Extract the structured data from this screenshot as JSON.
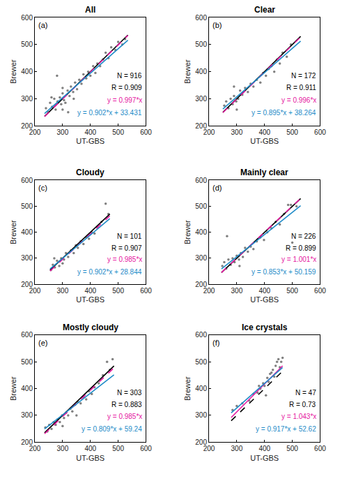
{
  "chart_data": [
    {
      "type": "scatter",
      "title": "All",
      "label": "(a)",
      "x_label": "UT-GBS",
      "y_label": "Brewer",
      "xlim": [
        200,
        600
      ],
      "ylim": [
        200,
        600
      ],
      "xticks": [
        200,
        300,
        400,
        500,
        600
      ],
      "yticks": [
        200,
        300,
        400,
        500,
        600
      ],
      "series": [
        {
          "type": "scatter",
          "marker": "circle",
          "color": "#808080",
          "x": [
            240,
            248,
            255,
            262,
            270,
            275,
            282,
            290,
            295,
            300,
            305,
            310,
            318,
            325,
            330,
            338,
            345,
            352,
            360,
            368,
            375,
            385,
            392,
            400,
            410,
            418,
            425,
            435,
            445,
            455,
            465,
            475,
            490,
            500,
            515,
            525,
            280,
            300,
            320,
            340,
            300,
            260
          ],
          "values": [
            265,
            250,
            285,
            270,
            300,
            260,
            290,
            305,
            280,
            320,
            295,
            285,
            330,
            310,
            345,
            325,
            360,
            335,
            370,
            355,
            390,
            375,
            400,
            385,
            420,
            395,
            430,
            420,
            445,
            470,
            450,
            490,
            480,
            510,
            500,
            520,
            385,
            260,
            250,
            300,
            340,
            305
          ]
        },
        {
          "type": "line",
          "color": "#000000",
          "line_style": "solid",
          "x": [
            235,
            535
          ],
          "values": [
            235,
            535
          ]
        },
        {
          "type": "line",
          "color": "#e5179f",
          "line_style": "dashed",
          "x": [
            235,
            535
          ],
          "values": [
            234.3,
            533.4
          ]
        },
        {
          "type": "line",
          "color": "#1f8bc8",
          "line_style": "solid",
          "x": [
            235,
            535
          ],
          "values": [
            245.4,
            516.0
          ]
        }
      ],
      "annotations": [
        {
          "text": "N = 916",
          "color": "#000000"
        },
        {
          "text": "R = 0.909",
          "color": "#000000"
        },
        {
          "text": "y = 0.997*x",
          "color": "#e5179f"
        },
        {
          "text": "y = 0.902*x + 33.431",
          "color": "#1f8bc8"
        }
      ]
    },
    {
      "type": "scatter",
      "title": "Clear",
      "label": "(b)",
      "x_label": "UT-GBS",
      "y_label": "Brewer",
      "xlim": [
        200,
        600
      ],
      "ylim": [
        200,
        600
      ],
      "xticks": [
        200,
        300,
        400,
        500,
        600
      ],
      "yticks": [
        200,
        300,
        400,
        500,
        600
      ],
      "series": [
        {
          "type": "scatter",
          "marker": "circle",
          "color": "#808080",
          "x": [
            255,
            262,
            270,
            278,
            285,
            290,
            298,
            305,
            312,
            320,
            330,
            340,
            350,
            360,
            372,
            385,
            395,
            405,
            415,
            425,
            435,
            445,
            455,
            465,
            480,
            495,
            290,
            300
          ],
          "values": [
            275,
            290,
            265,
            300,
            280,
            310,
            290,
            300,
            330,
            315,
            340,
            325,
            355,
            345,
            370,
            360,
            395,
            385,
            410,
            420,
            400,
            445,
            430,
            470,
            455,
            500,
            345,
            260
          ]
        },
        {
          "type": "line",
          "color": "#000000",
          "line_style": "solid",
          "x": [
            250,
            530
          ],
          "values": [
            250,
            530
          ]
        },
        {
          "type": "line",
          "color": "#e5179f",
          "line_style": "dashed",
          "x": [
            250,
            530
          ],
          "values": [
            249.0,
            527.9
          ]
        },
        {
          "type": "line",
          "color": "#1f8bc8",
          "line_style": "solid",
          "x": [
            250,
            530
          ],
          "values": [
            262.0,
            512.6
          ]
        }
      ],
      "annotations": [
        {
          "text": "N = 172",
          "color": "#000000"
        },
        {
          "text": "R = 0.911",
          "color": "#000000"
        },
        {
          "text": "y = 0.996*x",
          "color": "#e5179f"
        },
        {
          "text": "y = 0.895*x + 38.264",
          "color": "#1f8bc8"
        }
      ]
    },
    {
      "type": "scatter",
      "title": "Cloudy",
      "label": "(c)",
      "x_label": "UT-GBS",
      "y_label": "Brewer",
      "xlim": [
        200,
        600
      ],
      "ylim": [
        200,
        600
      ],
      "xticks": [
        200,
        300,
        400,
        500,
        600
      ],
      "yticks": [
        200,
        300,
        400,
        500,
        600
      ],
      "series": [
        {
          "type": "scatter",
          "marker": "circle",
          "color": "#808080",
          "x": [
            258,
            265,
            272,
            280,
            288,
            295,
            305,
            312,
            320,
            330,
            340,
            348,
            355,
            365,
            375,
            385,
            395,
            405,
            415,
            425,
            440,
            455,
            465,
            300,
            270
          ],
          "values": [
            255,
            275,
            265,
            290,
            270,
            300,
            295,
            320,
            305,
            330,
            320,
            350,
            340,
            365,
            355,
            380,
            375,
            400,
            395,
            420,
            440,
            510,
            470,
            280,
            300
          ]
        },
        {
          "type": "line",
          "color": "#000000",
          "line_style": "solid",
          "x": [
            255,
            470
          ],
          "values": [
            255,
            470
          ]
        },
        {
          "type": "line",
          "color": "#e5179f",
          "line_style": "dashed",
          "x": [
            255,
            470
          ],
          "values": [
            251.2,
            463.0
          ]
        },
        {
          "type": "line",
          "color": "#1f8bc8",
          "line_style": "solid",
          "x": [
            255,
            470
          ],
          "values": [
            258.9,
            452.8
          ]
        }
      ],
      "annotations": [
        {
          "text": "N = 101",
          "color": "#000000"
        },
        {
          "text": "R = 0.907",
          "color": "#000000"
        },
        {
          "text": "y = 0.985*x",
          "color": "#e5179f"
        },
        {
          "text": "y = 0.902*x + 28.844",
          "color": "#1f8bc8"
        }
      ]
    },
    {
      "type": "scatter",
      "title": "Mainly clear",
      "label": "(d)",
      "x_label": "UT-GBS",
      "y_label": "Brewer",
      "xlim": [
        200,
        600
      ],
      "ylim": [
        200,
        600
      ],
      "xticks": [
        200,
        300,
        400,
        500,
        600
      ],
      "yticks": [
        200,
        300,
        400,
        500,
        600
      ],
      "series": [
        {
          "type": "scatter",
          "marker": "circle",
          "color": "#808080",
          "x": [
            248,
            255,
            262,
            270,
            278,
            285,
            292,
            300,
            308,
            315,
            322,
            330,
            340,
            350,
            360,
            372,
            385,
            398,
            410,
            425,
            440,
            455,
            470,
            485,
            500,
            515,
            265,
            310,
            495
          ],
          "values": [
            270,
            285,
            260,
            295,
            275,
            300,
            285,
            310,
            295,
            320,
            305,
            340,
            325,
            345,
            335,
            365,
            380,
            370,
            400,
            415,
            440,
            430,
            470,
            505,
            360,
            500,
            385,
            270,
            505
          ]
        },
        {
          "type": "line",
          "color": "#000000",
          "line_style": "solid",
          "x": [
            245,
            530
          ],
          "values": [
            245,
            530
          ]
        },
        {
          "type": "line",
          "color": "#e5179f",
          "line_style": "dashed",
          "x": [
            245,
            530
          ],
          "values": [
            245.2,
            530.5
          ]
        },
        {
          "type": "line",
          "color": "#1f8bc8",
          "line_style": "solid",
          "x": [
            245,
            530
          ],
          "values": [
            259.1,
            502.2
          ]
        }
      ],
      "annotations": [
        {
          "text": "N = 226",
          "color": "#000000"
        },
        {
          "text": "R = 0.899",
          "color": "#000000"
        },
        {
          "text": "y = 1.001*x",
          "color": "#e5179f"
        },
        {
          "text": "y = 0.853*x + 50.159",
          "color": "#1f8bc8"
        }
      ]
    },
    {
      "type": "scatter",
      "title": "Mostly cloudy",
      "label": "(e)",
      "x_label": "UT-GBS",
      "y_label": "Brewer",
      "xlim": [
        200,
        600
      ],
      "ylim": [
        200,
        600
      ],
      "xticks": [
        200,
        300,
        400,
        500,
        600
      ],
      "yticks": [
        200,
        300,
        400,
        500,
        600
      ],
      "series": [
        {
          "type": "scatter",
          "marker": "circle",
          "color": "#808080",
          "x": [
            238,
            245,
            252,
            260,
            268,
            275,
            282,
            290,
            298,
            305,
            312,
            320,
            328,
            335,
            345,
            355,
            365,
            375,
            385,
            395,
            405,
            415,
            430,
            445,
            460,
            470,
            480,
            300,
            350
          ],
          "values": [
            255,
            240,
            265,
            250,
            275,
            265,
            285,
            275,
            300,
            290,
            310,
            300,
            325,
            315,
            340,
            350,
            345,
            370,
            360,
            390,
            380,
            405,
            420,
            450,
            500,
            470,
            510,
            260,
            300
          ]
        },
        {
          "type": "line",
          "color": "#000000",
          "line_style": "solid",
          "x": [
            235,
            485
          ],
          "values": [
            235,
            485
          ]
        },
        {
          "type": "line",
          "color": "#e5179f",
          "line_style": "dashed",
          "x": [
            235,
            485
          ],
          "values": [
            231.5,
            477.7
          ]
        },
        {
          "type": "line",
          "color": "#1f8bc8",
          "line_style": "solid",
          "x": [
            235,
            485
          ],
          "values": [
            249.4,
            451.6
          ]
        }
      ],
      "annotations": [
        {
          "text": "N = 303",
          "color": "#000000"
        },
        {
          "text": "R = 0.883",
          "color": "#000000"
        },
        {
          "text": "y = 0.985*x",
          "color": "#e5179f"
        },
        {
          "text": "y = 0.809*x + 59.24",
          "color": "#1f8bc8"
        }
      ]
    },
    {
      "type": "scatter",
      "title": "Ice crystals",
      "label": "(f)",
      "x_label": "UT-GBS",
      "y_label": "Brewer",
      "xlim": [
        200,
        600
      ],
      "ylim": [
        200,
        600
      ],
      "xticks": [
        200,
        300,
        400,
        500,
        600
      ],
      "yticks": [
        200,
        300,
        400,
        500,
        600
      ],
      "series": [
        {
          "type": "scatter",
          "marker": "circle",
          "color": "#808080",
          "x": [
            285,
            300,
            320,
            345,
            360,
            375,
            385,
            395,
            400,
            410,
            415,
            420,
            425,
            430,
            435,
            440,
            445,
            450,
            455,
            460,
            465,
            380,
            405
          ],
          "values": [
            320,
            335,
            345,
            355,
            380,
            385,
            400,
            420,
            410,
            440,
            425,
            455,
            460,
            470,
            445,
            485,
            500,
            510,
            480,
            500,
            515,
            410,
            375
          ]
        },
        {
          "type": "line",
          "color": "#000000",
          "line_style": "dashed",
          "x": [
            280,
            465
          ],
          "values": [
            280,
            465
          ]
        },
        {
          "type": "line",
          "color": "#e5179f",
          "line_style": "solid",
          "x": [
            280,
            465
          ],
          "values": [
            292.0,
            485.0
          ]
        },
        {
          "type": "line",
          "color": "#1f8bc8",
          "line_style": "solid",
          "x": [
            280,
            465
          ],
          "values": [
            309.4,
            479.0
          ]
        }
      ],
      "annotations": [
        {
          "text": "N = 47",
          "color": "#000000"
        },
        {
          "text": "R = 0.73",
          "color": "#000000"
        },
        {
          "text": "y = 1.043*x",
          "color": "#e5179f"
        },
        {
          "text": "y = 0.917*x + 52.62",
          "color": "#1f8bc8"
        }
      ]
    }
  ]
}
